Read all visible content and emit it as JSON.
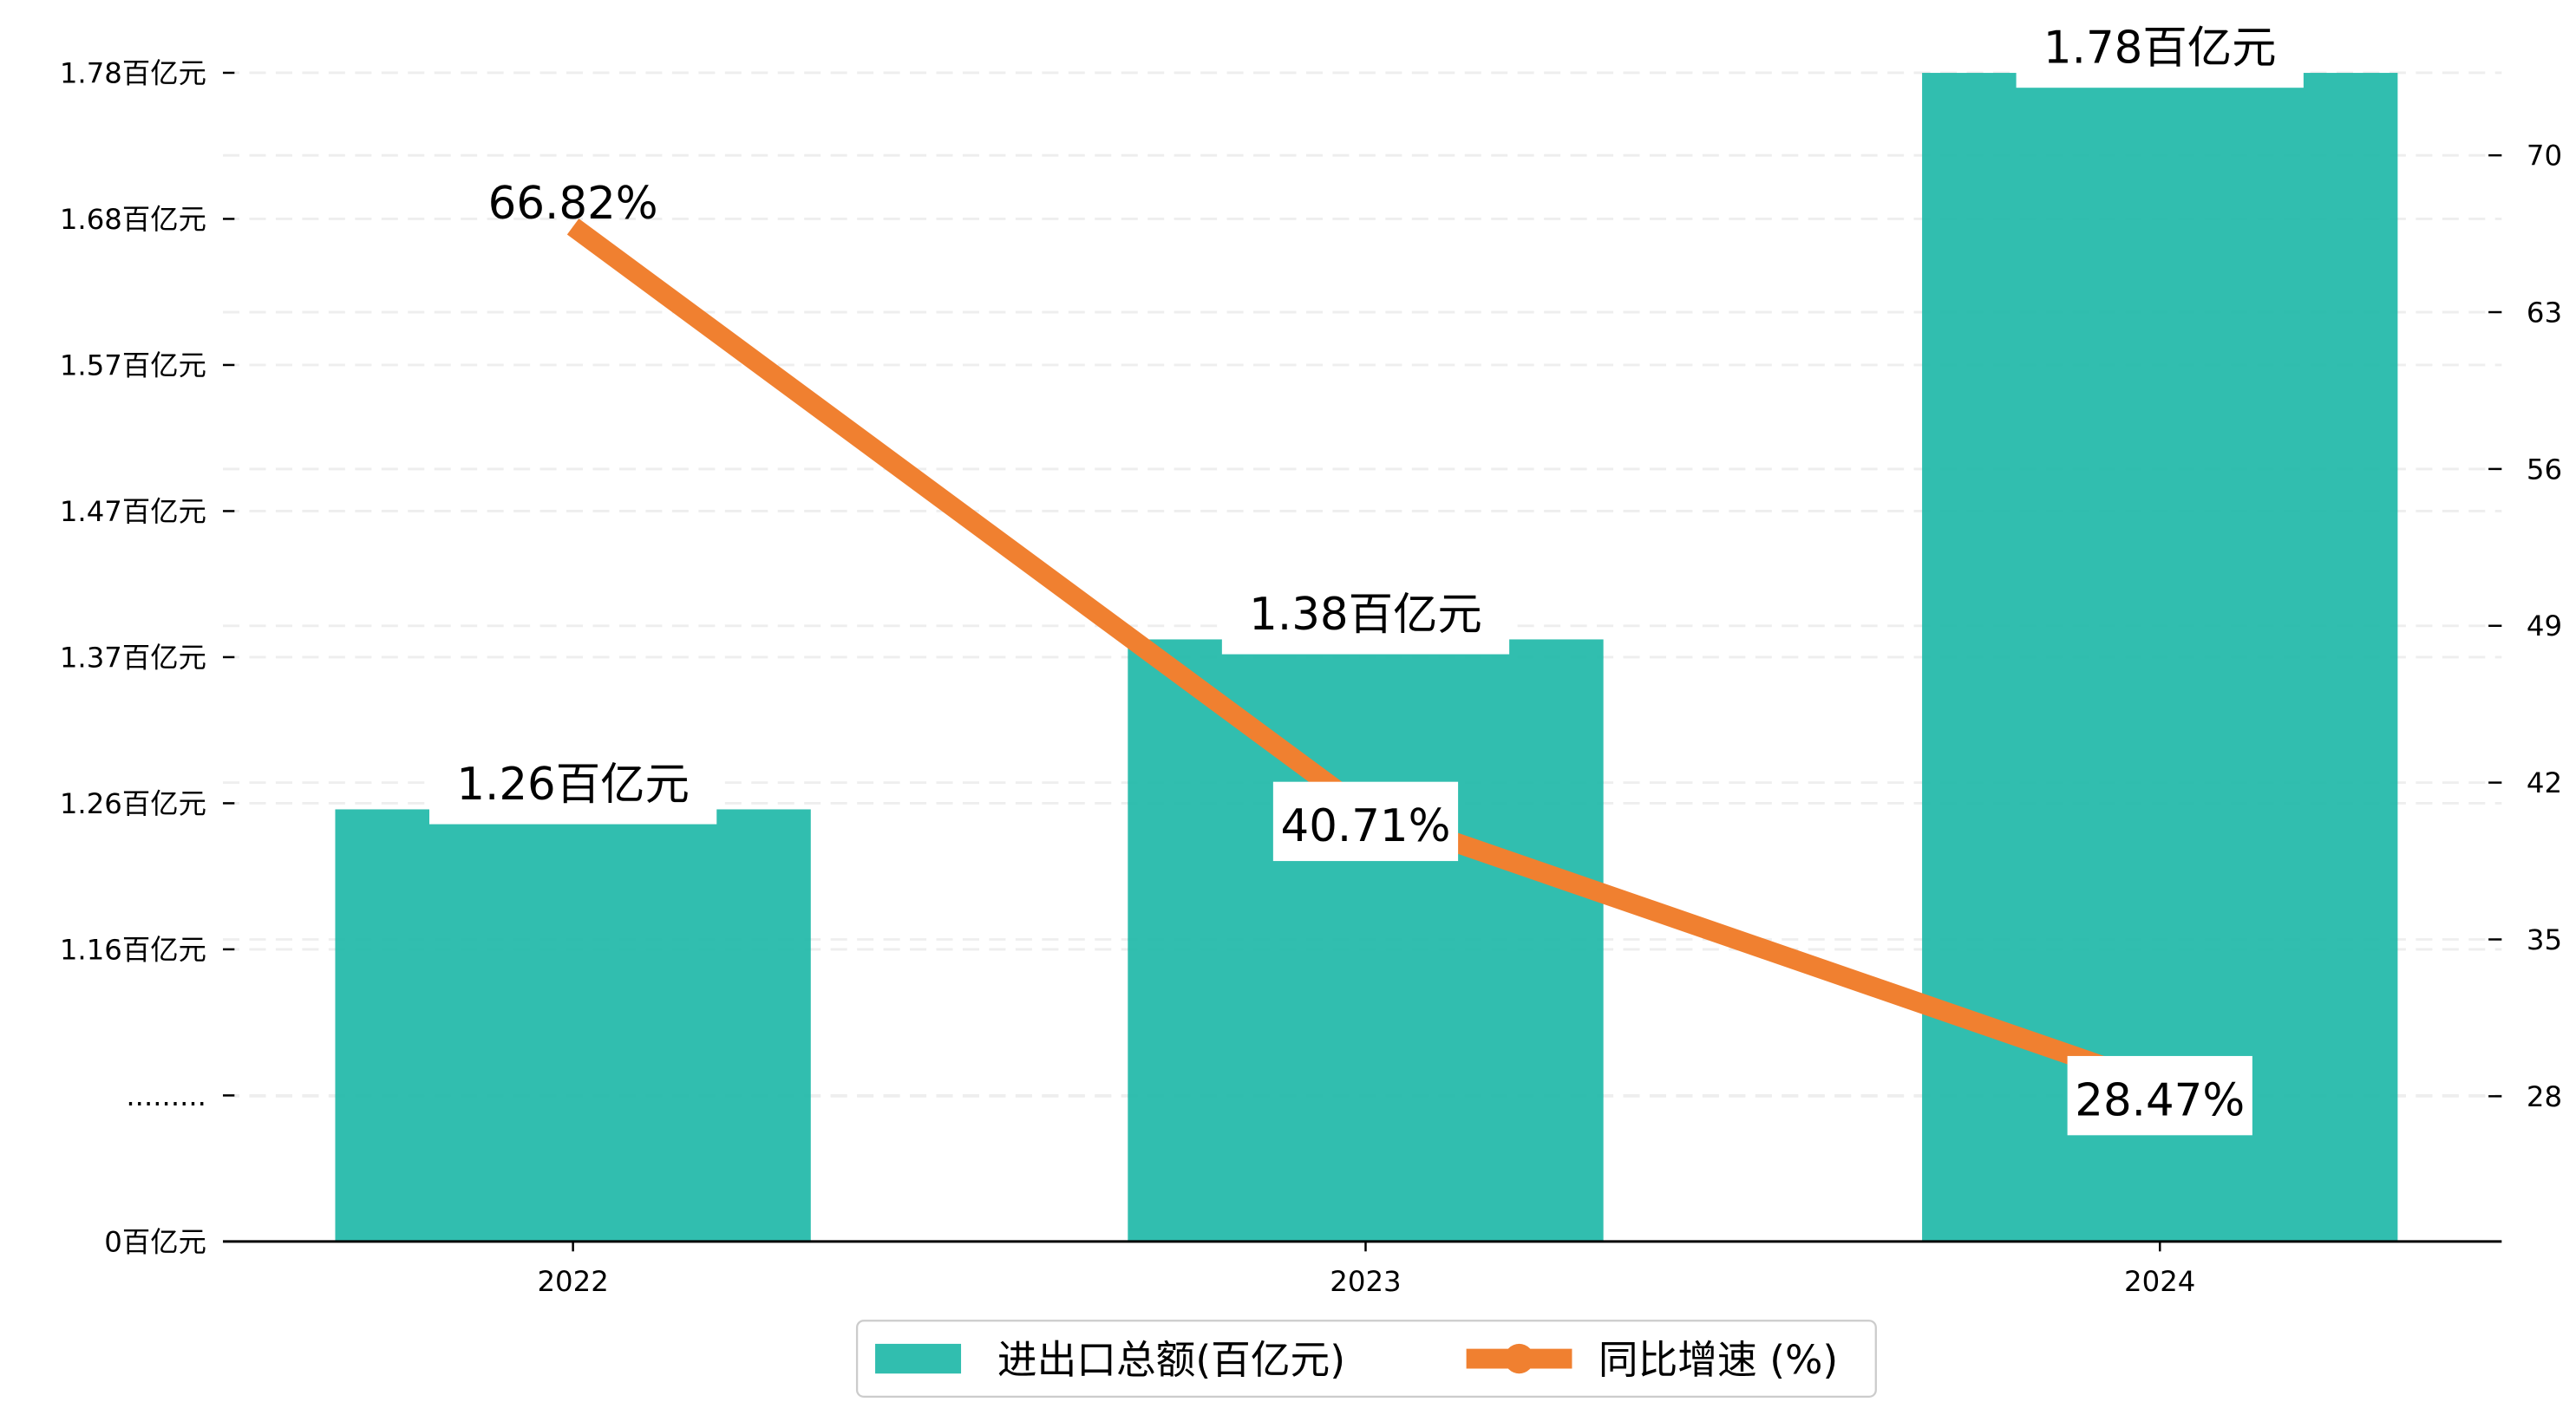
{
  "chart_data": {
    "type": "bar+line",
    "categories": [
      "2022",
      "2023",
      "2024"
    ],
    "series": [
      {
        "name": "进出口总额(百亿元)",
        "type": "bar",
        "axis": "left",
        "values": [
          1.26,
          1.38,
          1.78
        ],
        "labels": [
          "1.26百亿元",
          "1.38百亿元",
          "1.78百亿元"
        ],
        "color": "#1fb8a8"
      },
      {
        "name": "同比增速 (%)",
        "type": "line",
        "axis": "right",
        "values": [
          66.82,
          40.71,
          28.47
        ],
        "labels": [
          "66.82%",
          "40.71%",
          "28.47%"
        ],
        "color": "#f08030"
      }
    ],
    "left_axis": {
      "ticks": [
        {
          "value": 0,
          "label": "0百亿元"
        },
        {
          "value": null,
          "label": "........."
        },
        {
          "value": 1.16,
          "label": "1.16百亿元"
        },
        {
          "value": 1.26,
          "label": "1.26百亿元"
        },
        {
          "value": 1.37,
          "label": "1.37百亿元"
        },
        {
          "value": 1.47,
          "label": "1.47百亿元"
        },
        {
          "value": 1.57,
          "label": "1.57百亿元"
        },
        {
          "value": 1.68,
          "label": "1.68百亿元"
        },
        {
          "value": 1.78,
          "label": "1.78百亿元"
        }
      ],
      "broken": true
    },
    "right_axis": {
      "ticks": [
        28,
        35,
        42,
        49,
        56,
        63,
        70
      ],
      "ylim": [
        16.7,
        75.3
      ]
    },
    "grid": true,
    "legend": {
      "placement": "bottom-center",
      "entries": [
        "进出口总额(百亿元)",
        "同比增速 (%)"
      ]
    }
  }
}
